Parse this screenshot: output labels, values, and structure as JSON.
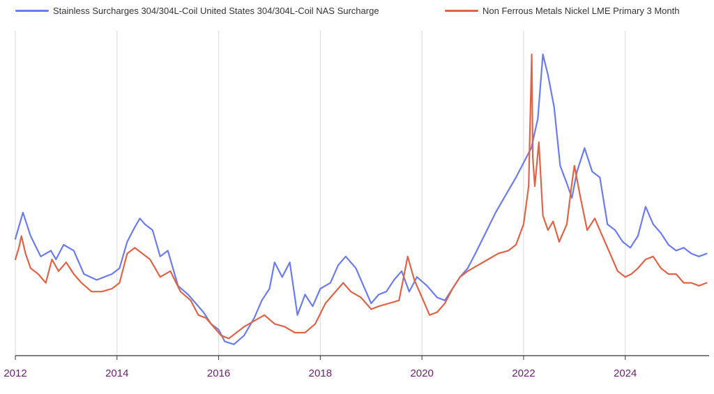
{
  "chart_data": {
    "type": "line",
    "title": "",
    "xlabel": "",
    "ylabel": "",
    "xlim": [
      2012.0,
      2025.65
    ],
    "ylim": [
      0,
      100
    ],
    "x_ticks": [
      "2012",
      "2014",
      "2016",
      "2018",
      "2020",
      "2022",
      "2024"
    ],
    "y_ticks": [],
    "y_unit_note": "no y-axis labels shown; values are relative (0 = chart floor, 100 = chart peak)",
    "grid": "vertical",
    "legend": "top",
    "series": [
      {
        "name": "Stainless Surcharges 304/304L-Coil United States 304/304L-Coil NAS Surcharge",
        "color": "#6b7bf0",
        "x": [
          2012.0,
          2012.15,
          2012.3,
          2012.5,
          2012.7,
          2012.8,
          2012.95,
          2013.15,
          2013.35,
          2013.6,
          2013.75,
          2013.9,
          2014.05,
          2014.2,
          2014.35,
          2014.45,
          2014.55,
          2014.7,
          2014.85,
          2015.0,
          2015.2,
          2015.4,
          2015.55,
          2015.7,
          2015.85,
          2016.0,
          2016.12,
          2016.3,
          2016.5,
          2016.7,
          2016.85,
          2017.0,
          2017.1,
          2017.25,
          2017.4,
          2017.55,
          2017.7,
          2017.85,
          2018.0,
          2018.2,
          2018.35,
          2018.5,
          2018.7,
          2018.85,
          2019.0,
          2019.15,
          2019.3,
          2019.45,
          2019.6,
          2019.75,
          2019.9,
          2020.1,
          2020.3,
          2020.45,
          2020.6,
          2020.75,
          2020.9,
          2021.05,
          2021.25,
          2021.45,
          2021.65,
          2021.85,
          2022.0,
          2022.15,
          2022.28,
          2022.38,
          2022.48,
          2022.6,
          2022.72,
          2022.85,
          2022.95,
          2023.05,
          2023.2,
          2023.35,
          2023.5,
          2023.65,
          2023.8,
          2023.95,
          2024.1,
          2024.25,
          2024.4,
          2024.55,
          2024.7,
          2024.85,
          2025.0,
          2025.15,
          2025.3,
          2025.45,
          2025.6
        ],
        "values": [
          37,
          46,
          38,
          31,
          33,
          30,
          35,
          33,
          25,
          23,
          24,
          25,
          27,
          36,
          41,
          44,
          42,
          40,
          31,
          33,
          21,
          18,
          15,
          12,
          8,
          6,
          2,
          1,
          4,
          10,
          16,
          20,
          29,
          24,
          29,
          11,
          18,
          14,
          20,
          22,
          28,
          31,
          27,
          21,
          15,
          18,
          19,
          23,
          26,
          19,
          24,
          21,
          17,
          16,
          20,
          24,
          27,
          32,
          39,
          46,
          52,
          58,
          63,
          68,
          78,
          100,
          93,
          82,
          62,
          56,
          51,
          60,
          68,
          60,
          58,
          42,
          40,
          36,
          34,
          38,
          48,
          42,
          39,
          35,
          33,
          34,
          32,
          31,
          32
        ]
      },
      {
        "name": "Non Ferrous Metals Nickel LME Primary 3 Month",
        "color": "#e06346",
        "x": [
          2012.0,
          2012.07,
          2012.12,
          2012.2,
          2012.3,
          2012.45,
          2012.6,
          2012.72,
          2012.85,
          2013.0,
          2013.15,
          2013.3,
          2013.5,
          2013.7,
          2013.9,
          2014.05,
          2014.2,
          2014.35,
          2014.5,
          2014.65,
          2014.85,
          2015.05,
          2015.25,
          2015.45,
          2015.6,
          2015.75,
          2015.9,
          2016.05,
          2016.2,
          2016.35,
          2016.5,
          2016.7,
          2016.9,
          2017.1,
          2017.3,
          2017.5,
          2017.7,
          2017.9,
          2018.1,
          2018.25,
          2018.45,
          2018.6,
          2018.8,
          2019.0,
          2019.15,
          2019.35,
          2019.55,
          2019.72,
          2019.85,
          2020.0,
          2020.15,
          2020.3,
          2020.45,
          2020.6,
          2020.75,
          2020.9,
          2021.1,
          2021.3,
          2021.5,
          2021.7,
          2021.85,
          2022.0,
          2022.1,
          2022.16,
          2022.18,
          2022.22,
          2022.3,
          2022.38,
          2022.48,
          2022.58,
          2022.7,
          2022.85,
          2022.95,
          2023.0,
          2023.12,
          2023.25,
          2023.4,
          2023.55,
          2023.7,
          2023.85,
          2024.0,
          2024.12,
          2024.25,
          2024.4,
          2024.55,
          2024.7,
          2024.85,
          2025.0,
          2025.15,
          2025.3,
          2025.45,
          2025.6
        ],
        "values": [
          30,
          34,
          38,
          32,
          27,
          25,
          22,
          30,
          26,
          29,
          25,
          22,
          19,
          19,
          20,
          22,
          32,
          34,
          32,
          30,
          24,
          26,
          19,
          16,
          11,
          10,
          7,
          4,
          3,
          5,
          7,
          9,
          11,
          8,
          7,
          5,
          5,
          8,
          15,
          18,
          22,
          19,
          17,
          13,
          14,
          15,
          16,
          31,
          23,
          17,
          11,
          12,
          15,
          20,
          24,
          26,
          28,
          30,
          32,
          33,
          35,
          42,
          55,
          100,
          65,
          55,
          70,
          45,
          40,
          43,
          36,
          42,
          56,
          62,
          51,
          40,
          44,
          38,
          32,
          26,
          24,
          25,
          27,
          30,
          31,
          27,
          25,
          25,
          22,
          22,
          21,
          22
        ]
      }
    ]
  }
}
